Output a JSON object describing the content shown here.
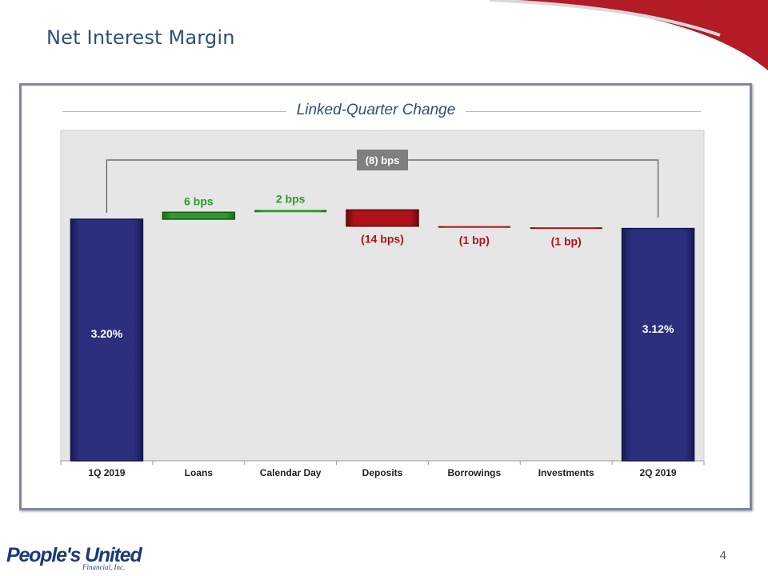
{
  "page": {
    "title": "Net Interest Margin",
    "subtitle": "Linked-Quarter Change",
    "page_number": "4",
    "logo": {
      "main": "People's United",
      "sub": "Financial, Inc."
    }
  },
  "colors": {
    "title": "#2e4f7a",
    "endpoint_bar": "#2b2f7e",
    "increase": "#2e9a2e",
    "decrease": "#b0121a",
    "plot_bg": "#e6e6e6",
    "total_badge": "#7f7f7f",
    "accent_red": "#b31b27"
  },
  "chart_data": {
    "type": "bar",
    "subtype": "waterfall",
    "title": "Linked-Quarter Change",
    "unit": "%",
    "categories": [
      "1Q 2019",
      "Loans",
      "Calendar Day",
      "Deposits",
      "Borrowings",
      "Investments",
      "2Q 2019"
    ],
    "start": {
      "category": "1Q 2019",
      "value": 3.2,
      "label": "3.20%"
    },
    "end": {
      "category": "2Q 2019",
      "value": 3.12,
      "label": "3.12%"
    },
    "changes": [
      {
        "category": "Loans",
        "value_bps": 6,
        "label": "6 bps"
      },
      {
        "category": "Calendar Day",
        "value_bps": 2,
        "label": "2 bps"
      },
      {
        "category": "Deposits",
        "value_bps": -14,
        "label": "(14 bps)"
      },
      {
        "category": "Borrowings",
        "value_bps": -1,
        "label": "(1 bp)"
      },
      {
        "category": "Investments",
        "value_bps": -1,
        "label": "(1 bp)"
      }
    ],
    "total_change": {
      "value_bps": -8,
      "label": "(8) bps"
    },
    "grid": false,
    "legend": "none"
  }
}
